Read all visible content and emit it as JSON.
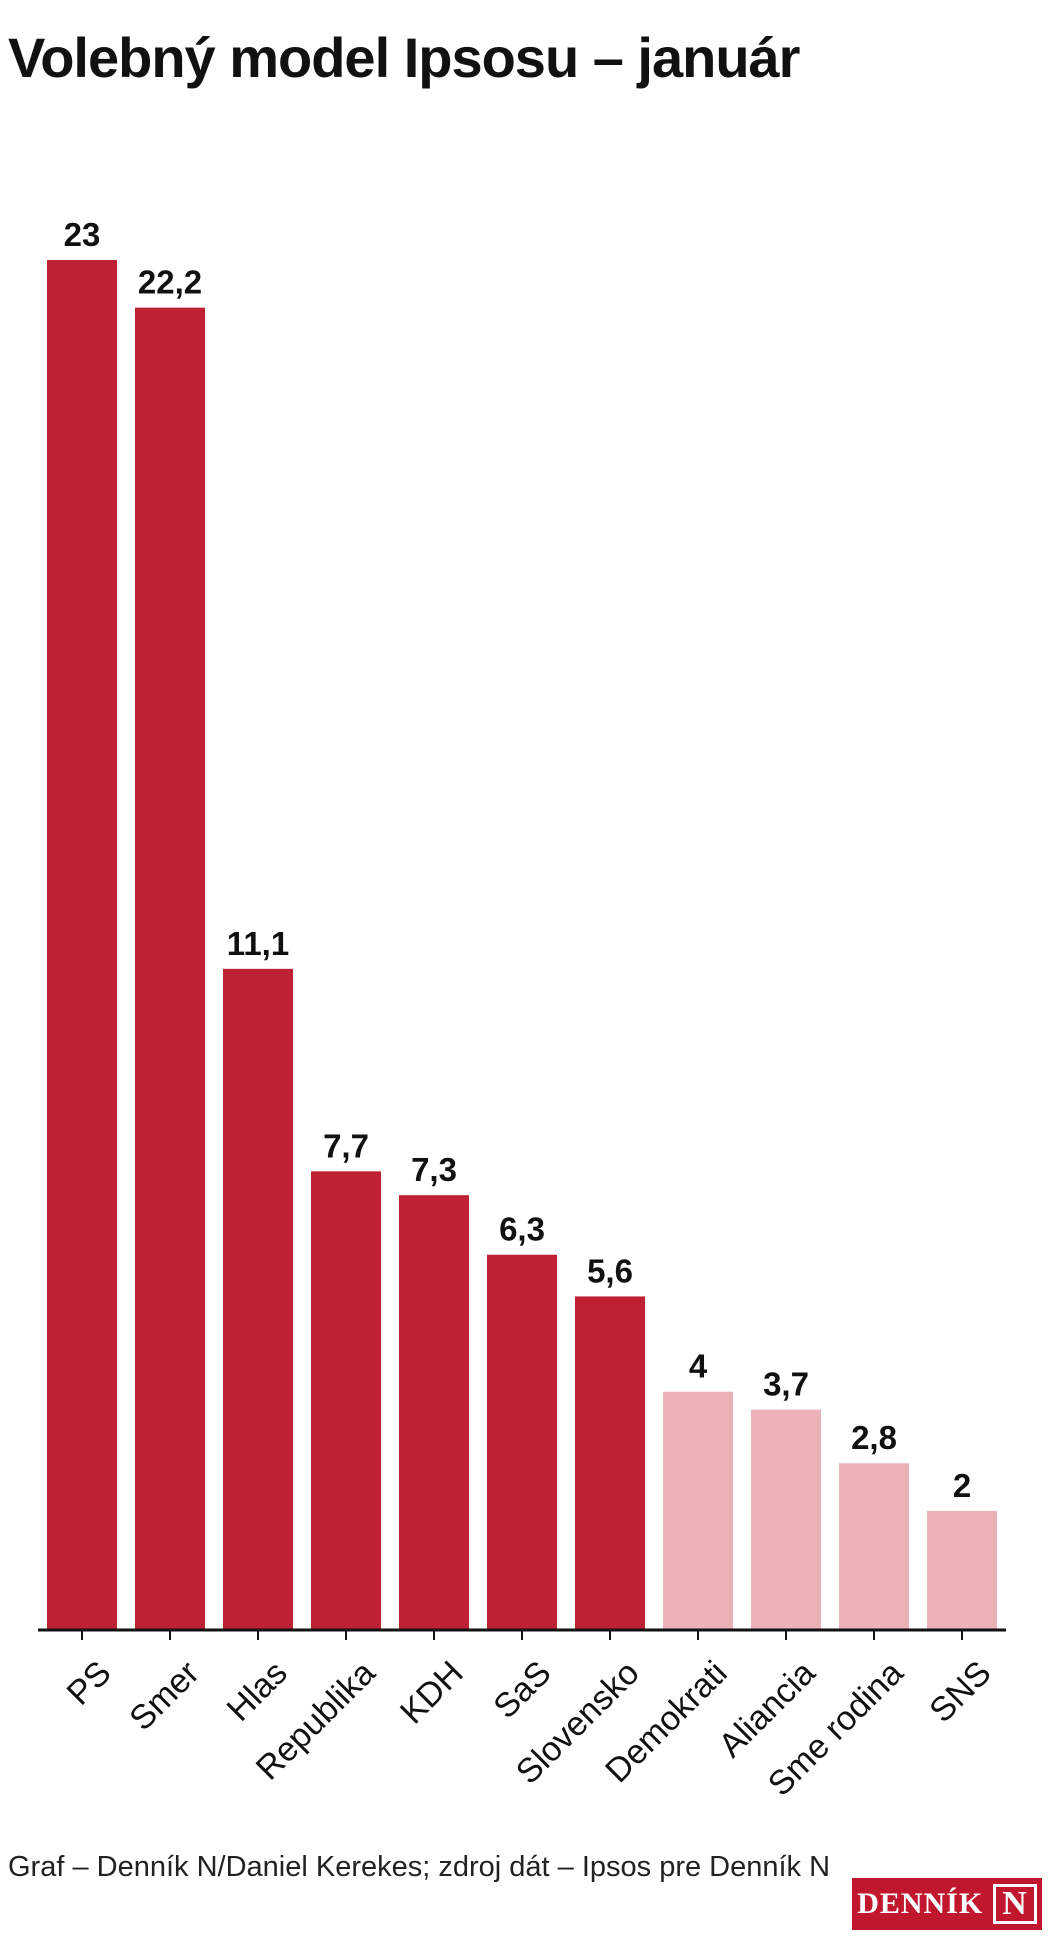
{
  "chart_data": {
    "type": "bar",
    "title": "Volebný model Ipsosu – január",
    "categories": [
      "PS",
      "Smer",
      "Hlas",
      "Republika",
      "KDH",
      "SaS",
      "Slovensko",
      "Demokrati",
      "Aliancia",
      "Sme rodina",
      "SNS"
    ],
    "values": [
      23,
      22.2,
      11.1,
      7.7,
      7.3,
      6.3,
      5.6,
      4,
      3.7,
      2.8,
      2
    ],
    "value_labels": [
      "23",
      "22,2",
      "11,1",
      "7,7",
      "7,3",
      "6,3",
      "5,6",
      "4",
      "3,7",
      "2,8",
      "2"
    ],
    "xlabel": "",
    "ylabel": "",
    "ylim": [
      0,
      23
    ],
    "grid": false,
    "colors": {
      "above_threshold": "#bf2134",
      "below_threshold": "#ebb3b9",
      "axis": "#111111"
    },
    "highlight_threshold": 5
  },
  "footer": {
    "credit": "Graf – Denník N/Daniel Kerekes; zdroj dát – Ipsos pre Denník N"
  },
  "logo": {
    "word": "DENNÍK",
    "letter": "N"
  }
}
